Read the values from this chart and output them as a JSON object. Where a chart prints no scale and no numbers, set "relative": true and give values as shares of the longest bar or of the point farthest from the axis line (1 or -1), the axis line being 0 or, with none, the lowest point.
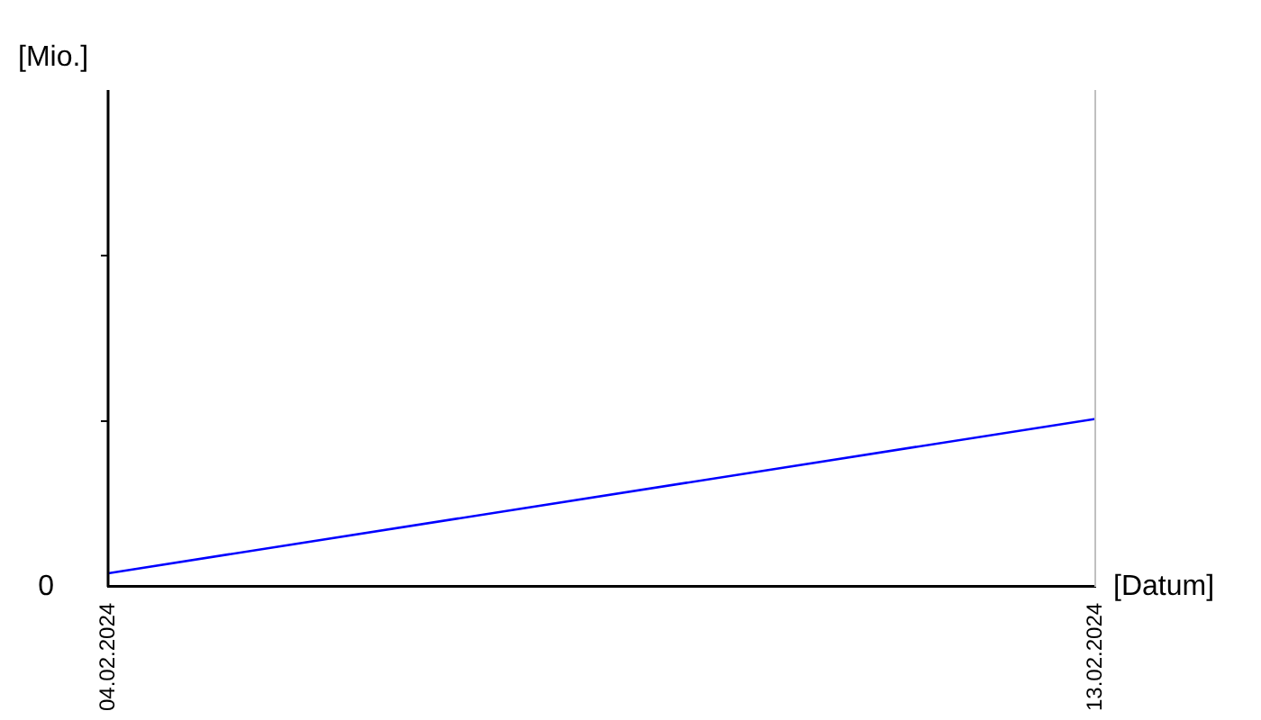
{
  "chart_data": {
    "type": "line",
    "relative": true,
    "xlabel": "[Datum]",
    "annotations": [
      "[Mio.]",
      "0"
    ],
    "x": [
      "2024-02-04",
      "2024-02-13"
    ],
    "xlim": [
      "2024-02-04",
      "2024-02-13"
    ],
    "xticks": [
      {
        "value": "2024-02-04",
        "label": "04.02.2024"
      },
      {
        "value": "2024-02-13",
        "label": "13.02.2024"
      }
    ],
    "series": [
      {
        "color": "#0000ff",
        "values": [
          0.08,
          1
        ]
      }
    ],
    "grid": false,
    "legend": false,
    "marker": "none",
    "line_style": "solid"
  }
}
